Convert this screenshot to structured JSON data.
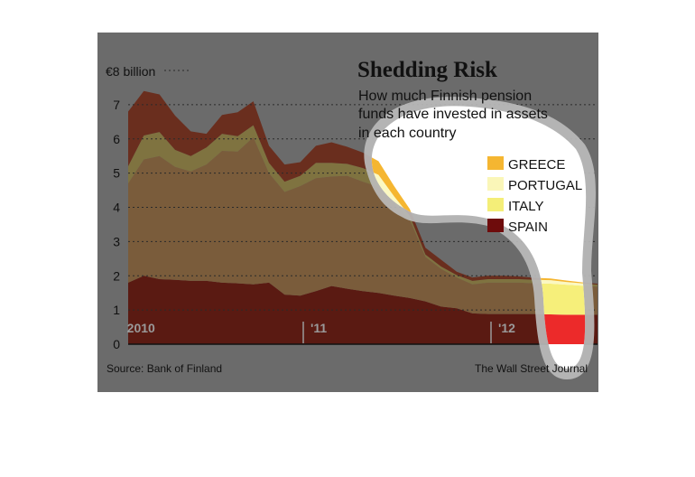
{
  "chart_data": {
    "type": "area",
    "stacked": true,
    "title": "Shedding Risk",
    "subtitle_lines": [
      "How much Finnish pension",
      "funds have invested in assets",
      "in each country"
    ],
    "y_unit_label": "€8 billion",
    "ylim": [
      0,
      8
    ],
    "yticks": [
      0,
      1,
      2,
      3,
      4,
      5,
      6,
      7
    ],
    "x_tick_labels": [
      {
        "label": "2010",
        "x": 0.5
      },
      {
        "label": "'11",
        "x": 12
      },
      {
        "label": "'12",
        "x": 24
      }
    ],
    "xlim": [
      0,
      30
    ],
    "x": [
      0,
      1,
      2,
      3,
      4,
      5,
      6,
      7,
      8,
      9,
      10,
      11,
      12,
      13,
      14,
      15,
      16,
      17,
      18,
      19,
      20,
      21,
      22,
      23,
      24,
      25,
      26,
      27,
      28,
      29,
      30
    ],
    "series": [
      {
        "name": "SPAIN",
        "color": "#7a1010",
        "values": [
          1.8,
          2.0,
          1.9,
          1.88,
          1.85,
          1.85,
          1.8,
          1.78,
          1.75,
          1.8,
          1.45,
          1.42,
          1.55,
          1.7,
          1.62,
          1.55,
          1.5,
          1.42,
          1.35,
          1.25,
          1.1,
          1.05,
          0.9,
          0.88,
          0.88,
          0.88,
          0.88,
          0.87,
          0.86,
          0.86,
          0.86
        ]
      },
      {
        "name": "ITALY",
        "color": "#d8cf5a",
        "values": [
          2.9,
          3.4,
          3.6,
          3.3,
          3.2,
          3.4,
          3.85,
          3.85,
          4.3,
          3.2,
          3.0,
          3.2,
          3.3,
          3.2,
          3.3,
          3.2,
          3.1,
          2.7,
          2.3,
          1.3,
          1.1,
          0.9,
          0.85,
          0.92,
          0.92,
          0.92,
          0.9,
          0.9,
          0.88,
          0.85,
          0.82
        ]
      },
      {
        "name": "PORTUGAL",
        "color": "#f3f0a8",
        "values": [
          0.5,
          0.7,
          0.7,
          0.5,
          0.45,
          0.5,
          0.5,
          0.45,
          0.35,
          0.3,
          0.3,
          0.3,
          0.45,
          0.4,
          0.35,
          0.4,
          0.35,
          0.2,
          0.1,
          0.07,
          0.07,
          0.07,
          0.1,
          0.1,
          0.1,
          0.1,
          0.1,
          0.1,
          0.08,
          0.07,
          0.06
        ]
      },
      {
        "name": "GREECE",
        "color": "#f5b631",
        "values": [
          1.6,
          1.3,
          1.1,
          1.0,
          0.72,
          0.4,
          0.55,
          0.7,
          0.7,
          0.5,
          0.5,
          0.4,
          0.5,
          0.6,
          0.5,
          0.45,
          0.4,
          0.3,
          0.2,
          0.2,
          0.2,
          0.1,
          0.1,
          0.1,
          0.1,
          0.08,
          0.06,
          0.05,
          0.04,
          0.03,
          0.03
        ]
      }
    ],
    "legend_order": [
      "GREECE",
      "PORTUGAL",
      "ITALY",
      "SPAIN"
    ],
    "legend_position": "top-right",
    "grid": true,
    "source": "Source: Bank of Finland",
    "credit": "The Wall Street Journal"
  }
}
